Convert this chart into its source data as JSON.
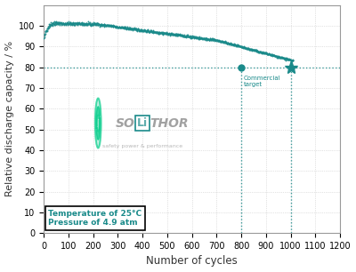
{
  "xlabel": "Number of cycles",
  "ylabel": "Relative discharge capacity / %",
  "xlim": [
    0,
    1200
  ],
  "ylim": [
    0,
    110
  ],
  "xticks": [
    0,
    100,
    200,
    300,
    400,
    500,
    600,
    700,
    800,
    900,
    1000,
    1100,
    1200
  ],
  "yticks": [
    0,
    10,
    20,
    30,
    40,
    50,
    60,
    70,
    80,
    90,
    100
  ],
  "dot_color": "#1a8a8a",
  "dashed_line_color": "#1a8a8a",
  "commercial_target_x": 800,
  "commercial_target_y": 80,
  "star_x": 1000,
  "star_y": 80,
  "annotation_text": "Commercial\ntarget",
  "temp_text": "Temperature of 25°C\nPressure of 4.9 atm",
  "background_color": "#ffffff"
}
